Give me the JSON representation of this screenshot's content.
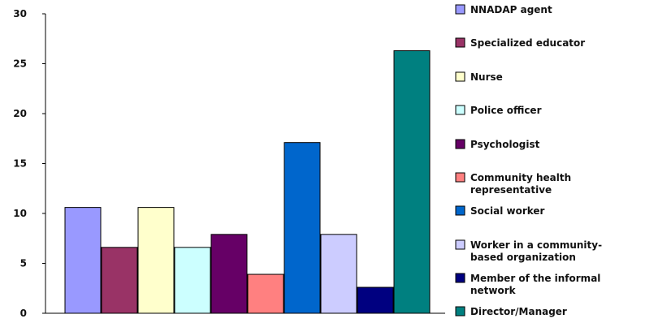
{
  "chart_data": {
    "type": "bar",
    "title": "",
    "xlabel": "",
    "ylabel": "",
    "ylim": [
      0,
      30
    ],
    "yticks": [
      0,
      5,
      10,
      15,
      20,
      25,
      30
    ],
    "grid": false,
    "legend_position": "right",
    "categories": [
      "NNADAP agent",
      "Specialized educator",
      "Nurse",
      "Police officer",
      "Psychologist",
      "Community health representative",
      "Social worker",
      "Worker in a community-based organization",
      "Member of the informal network",
      "Director/Manager"
    ],
    "values": [
      10.6,
      6.6,
      10.6,
      6.6,
      7.9,
      3.9,
      17.1,
      7.9,
      2.6,
      26.3
    ],
    "colors": [
      "#9999FF",
      "#993366",
      "#FFFFCC",
      "#CCFFFF",
      "#660066",
      "#FF8080",
      "#0066CC",
      "#CCCCFF",
      "#000080",
      "#008080"
    ],
    "legend": [
      {
        "lines": [
          "NNADAP agent"
        ]
      },
      {
        "lines": [
          "Specialized educator"
        ]
      },
      {
        "lines": [
          "Nurse"
        ]
      },
      {
        "lines": [
          "Police officer"
        ]
      },
      {
        "lines": [
          "Psychologist"
        ]
      },
      {
        "lines": [
          "Community health",
          "representative"
        ]
      },
      {
        "lines": [
          "Social worker"
        ]
      },
      {
        "lines": [
          "Worker in a community-",
          "based organization"
        ]
      },
      {
        "lines": [
          "Member of the informal",
          "network"
        ]
      },
      {
        "lines": [
          "Director/Manager"
        ]
      }
    ]
  }
}
